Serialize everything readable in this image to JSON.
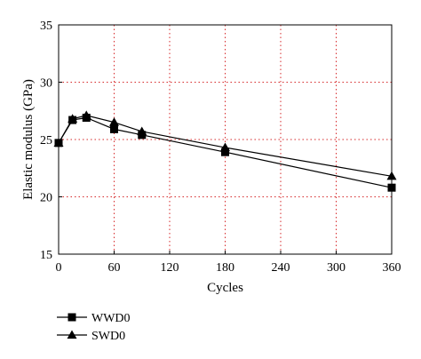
{
  "chart_data": {
    "type": "line",
    "xlabel": "Cycles",
    "ylabel": "Elastic modulus (GPa)",
    "xlim": [
      0,
      360
    ],
    "ylim": [
      15,
      35
    ],
    "xticks": [
      0,
      60,
      120,
      180,
      240,
      300,
      360
    ],
    "yticks": [
      15,
      20,
      25,
      30,
      35
    ],
    "grid": true,
    "legend_position": "bottom-left",
    "series": [
      {
        "name": "WWD0",
        "marker": "square",
        "color": "#000000",
        "x": [
          0,
          15,
          30,
          60,
          90,
          180,
          360
        ],
        "y": [
          24.7,
          26.7,
          26.9,
          25.9,
          25.4,
          23.9,
          20.8
        ]
      },
      {
        "name": "SWD0",
        "marker": "triangle",
        "color": "#000000",
        "x": [
          0,
          15,
          30,
          60,
          90,
          180,
          360
        ],
        "y": [
          24.7,
          26.8,
          27.1,
          26.5,
          25.7,
          24.3,
          21.8
        ]
      }
    ]
  }
}
